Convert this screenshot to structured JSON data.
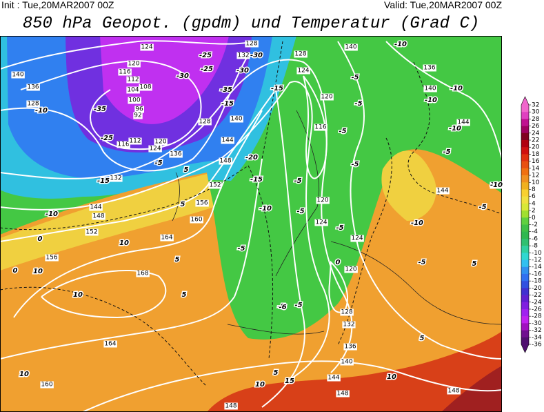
{
  "header": {
    "init": "Init : Tue,20MAR2007 00Z",
    "valid": "Valid: Tue,20MAR2007 00Z",
    "title": "850 hPa Geopot. (gpdm) und Temperatur (Grad C)"
  },
  "colorbar": {
    "ticks": [
      32,
      30,
      28,
      26,
      24,
      22,
      20,
      18,
      16,
      14,
      12,
      10,
      8,
      6,
      4,
      2,
      0,
      -2,
      -4,
      -6,
      -8,
      -10,
      -12,
      -14,
      -16,
      -18,
      -20,
      -22,
      -24,
      -26,
      -28,
      -30,
      -32,
      -34,
      -36
    ],
    "colors": [
      "#f066cc",
      "#e040c0",
      "#c01090",
      "#a00060",
      "#800020",
      "#b00010",
      "#d01010",
      "#e03010",
      "#e85010",
      "#f07010",
      "#f09020",
      "#f0b020",
      "#f8d030",
      "#f0e040",
      "#d8e838",
      "#a0e030",
      "#60d040",
      "#40c048",
      "#30b850",
      "#30c070",
      "#30d0a0",
      "#30d8d0",
      "#30c0f0",
      "#3090f0",
      "#3070f0",
      "#3050e0",
      "#4030d0",
      "#6020d0",
      "#8020e0",
      "#a020f0",
      "#c020f0",
      "#a010c0",
      "#701090",
      "#501070"
    ]
  },
  "geopotential_labels": [
    124,
    132,
    128,
    128,
    140,
    136,
    124,
    140,
    120,
    144,
    116,
    140,
    128,
    144,
    148,
    152,
    156,
    160,
    164,
    168,
    164,
    160,
    156,
    152,
    148,
    144,
    140,
    136,
    128,
    132,
    120,
    124,
    136,
    116,
    112,
    120,
    116,
    112,
    104,
    100,
    96,
    92,
    108,
    120,
    124,
    124,
    120,
    128,
    132,
    136,
    140,
    144,
    148,
    148,
    148,
    144,
    144
  ],
  "temperature_labels": [
    -10,
    -5,
    -10,
    -10,
    -5,
    -10,
    -15,
    -25,
    -30,
    -25,
    -30,
    -35,
    -30,
    -35,
    -25,
    -10,
    -5,
    -20,
    -15,
    -10,
    -15,
    -5,
    -5,
    -5,
    -5,
    -10,
    -5,
    -5,
    -5,
    -5,
    -5,
    -10,
    -5,
    -10,
    -15,
    0,
    5,
    5,
    10,
    10,
    10,
    0,
    5,
    0,
    5,
    10,
    10,
    15,
    10,
    5,
    5,
    -5,
    -6,
    5
  ]
}
